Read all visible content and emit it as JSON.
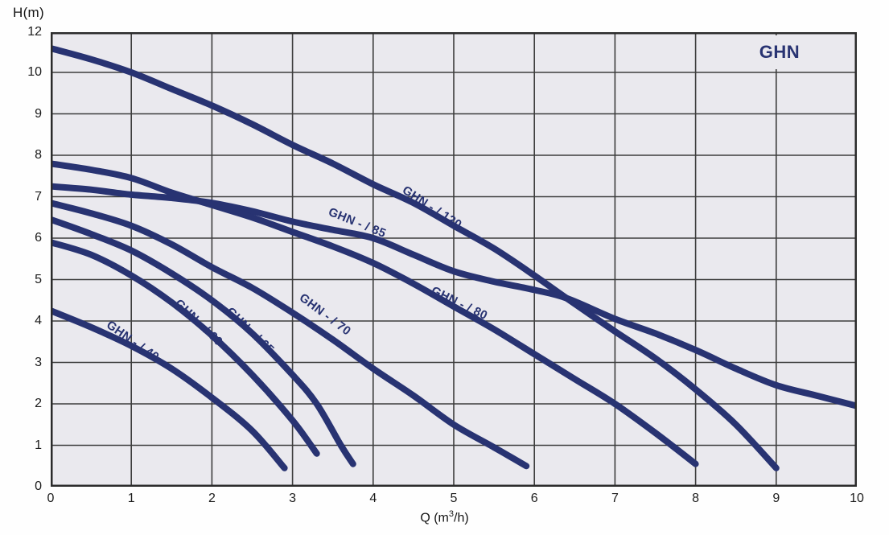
{
  "title": {
    "text": "GHN"
  },
  "y_axis": {
    "title": "H(m)",
    "ticks": [
      12,
      10,
      9,
      8,
      7,
      6,
      5,
      4,
      3,
      2,
      1,
      0
    ]
  },
  "x_axis": {
    "title_pre": "Q (m",
    "title_sup": "3",
    "title_post": "/h)",
    "ticks": [
      0,
      1,
      2,
      3,
      4,
      5,
      6,
      7,
      8,
      9,
      10
    ]
  },
  "colors": {
    "curve": "#283372",
    "plot_bg": "#eae9ee",
    "grid": "#3d3d3d",
    "border": "#2b2b2b",
    "tick_text": "#1c1c1c"
  },
  "chart_data": {
    "type": "line",
    "title": "GHN",
    "xlabel": "Q (m3/h)",
    "ylabel": "H(m)",
    "xlim": [
      0,
      10
    ],
    "ylim": [
      0,
      12
    ],
    "grid": true,
    "x_gridline_step": 1,
    "y_gridline_values": [
      0,
      1,
      2,
      3,
      4,
      5,
      6,
      7,
      8,
      9,
      10,
      12
    ],
    "y_axis_note": "axis compressed above 10: the 10-to-12 span occupies a single grid row (11 not labeled)",
    "series": [
      {
        "name": "GHN - / 120",
        "points": [
          [
            0,
            11.2
          ],
          [
            0.5,
            10.65
          ],
          [
            1,
            10.0
          ],
          [
            1.5,
            9.6
          ],
          [
            2,
            9.2
          ],
          [
            2.5,
            8.75
          ],
          [
            3,
            8.25
          ],
          [
            3.5,
            7.8
          ],
          [
            4,
            7.3
          ],
          [
            4.5,
            6.85
          ],
          [
            5,
            6.3
          ],
          [
            5.5,
            5.75
          ],
          [
            6,
            5.1
          ],
          [
            6.4,
            4.55
          ],
          [
            7,
            3.75
          ],
          [
            7.5,
            3.1
          ],
          [
            8,
            2.35
          ],
          [
            8.5,
            1.5
          ],
          [
            9,
            0.45
          ]
        ]
      },
      {
        "name": "GHN - / 85",
        "points": [
          [
            0,
            7.25
          ],
          [
            0.5,
            7.17
          ],
          [
            1,
            7.05
          ],
          [
            1.5,
            6.97
          ],
          [
            2,
            6.85
          ],
          [
            2.5,
            6.65
          ],
          [
            3,
            6.4
          ],
          [
            3.5,
            6.2
          ],
          [
            4,
            6.0
          ],
          [
            4.5,
            5.6
          ],
          [
            5,
            5.2
          ],
          [
            5.5,
            4.95
          ],
          [
            6,
            4.75
          ],
          [
            6.4,
            4.55
          ],
          [
            7,
            4.05
          ],
          [
            7.5,
            3.7
          ],
          [
            8,
            3.3
          ],
          [
            8.5,
            2.85
          ],
          [
            9,
            2.45
          ],
          [
            9.5,
            2.2
          ],
          [
            10,
            1.95
          ]
        ]
      },
      {
        "name": "GHN - / 80",
        "points": [
          [
            0,
            7.8
          ],
          [
            0.5,
            7.65
          ],
          [
            1,
            7.45
          ],
          [
            1.5,
            7.1
          ],
          [
            2,
            6.8
          ],
          [
            2.5,
            6.5
          ],
          [
            3,
            6.15
          ],
          [
            3.5,
            5.8
          ],
          [
            4,
            5.4
          ],
          [
            4.5,
            4.9
          ],
          [
            5,
            4.35
          ],
          [
            5.5,
            3.8
          ],
          [
            6,
            3.2
          ],
          [
            6.5,
            2.6
          ],
          [
            7,
            2.0
          ],
          [
            7.5,
            1.3
          ],
          [
            8,
            0.55
          ]
        ]
      },
      {
        "name": "GHN - / 70",
        "points": [
          [
            0,
            6.85
          ],
          [
            0.5,
            6.6
          ],
          [
            1,
            6.3
          ],
          [
            1.5,
            5.85
          ],
          [
            2,
            5.3
          ],
          [
            2.5,
            4.8
          ],
          [
            3,
            4.2
          ],
          [
            3.5,
            3.55
          ],
          [
            4,
            2.85
          ],
          [
            4.5,
            2.2
          ],
          [
            5,
            1.5
          ],
          [
            5.5,
            0.95
          ],
          [
            5.9,
            0.5
          ]
        ]
      },
      {
        "name": "GHN - / 65",
        "points": [
          [
            0,
            6.45
          ],
          [
            0.5,
            6.1
          ],
          [
            1,
            5.7
          ],
          [
            1.5,
            5.15
          ],
          [
            2,
            4.5
          ],
          [
            2.5,
            3.7
          ],
          [
            3,
            2.7
          ],
          [
            3.3,
            2.0
          ],
          [
            3.6,
            1.0
          ],
          [
            3.75,
            0.55
          ]
        ]
      },
      {
        "name": "GHN - / 60",
        "points": [
          [
            0,
            5.9
          ],
          [
            0.5,
            5.6
          ],
          [
            1,
            5.1
          ],
          [
            1.5,
            4.45
          ],
          [
            2,
            3.65
          ],
          [
            2.5,
            2.7
          ],
          [
            3,
            1.6
          ],
          [
            3.3,
            0.8
          ]
        ]
      },
      {
        "name": "GHN - / 40",
        "points": [
          [
            0,
            4.25
          ],
          [
            0.5,
            3.85
          ],
          [
            1,
            3.4
          ],
          [
            1.5,
            2.85
          ],
          [
            2,
            2.15
          ],
          [
            2.5,
            1.35
          ],
          [
            2.9,
            0.45
          ]
        ]
      }
    ],
    "curve_labels": [
      {
        "text": "GHN - / 120",
        "q": 4.73,
        "h": 6.74,
        "angle": 33
      },
      {
        "text": "GHN - / 85",
        "q": 3.8,
        "h": 6.37,
        "angle": 22
      },
      {
        "text": "GHN - / 80",
        "q": 5.07,
        "h": 4.43,
        "angle": 26
      },
      {
        "text": "GHN - / 70",
        "q": 3.4,
        "h": 4.16,
        "angle": 37
      },
      {
        "text": "GHN - / 65",
        "q": 2.48,
        "h": 3.77,
        "angle": 44
      },
      {
        "text": "GHN - / 60",
        "q": 1.84,
        "h": 3.96,
        "angle": 44
      },
      {
        "text": "GHN - / 40",
        "q": 1.02,
        "h": 3.51,
        "angle": 35
      }
    ],
    "legend": "none"
  }
}
